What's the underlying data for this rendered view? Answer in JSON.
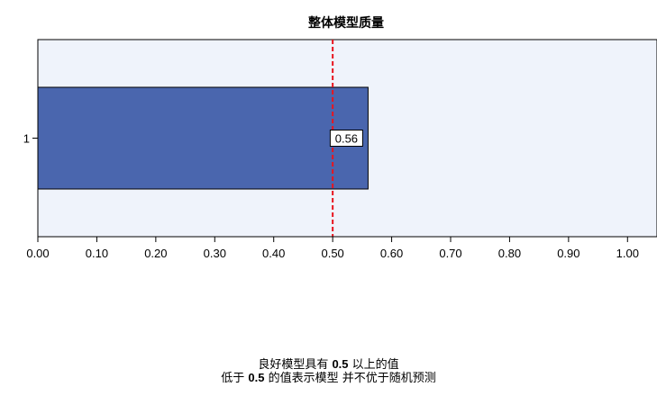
{
  "chart_data": {
    "type": "bar",
    "orientation": "horizontal",
    "title": "整体模型质量",
    "categories": [
      "1"
    ],
    "values": [
      0.56
    ],
    "data_labels": [
      "0.56"
    ],
    "xlim": [
      0,
      1.05
    ],
    "xticks": [
      0.0,
      0.1,
      0.2,
      0.3,
      0.4,
      0.5,
      0.6,
      0.7,
      0.8,
      0.9,
      1.0
    ],
    "xtick_labels": [
      "0.00",
      "0.10",
      "0.20",
      "0.30",
      "0.40",
      "0.50",
      "0.60",
      "0.70",
      "0.80",
      "0.90",
      "1.00"
    ],
    "reference_line": {
      "value": 0.5,
      "style": "dashed"
    },
    "xlabel": "",
    "ylabel": "",
    "grid": false,
    "colors": {
      "bar": "#4a66ae",
      "plot_background": "#eff3fb",
      "reference_line": "#e8141e",
      "axis": "#000000"
    }
  },
  "footnote": {
    "line1": {
      "pre": "良好模型具有 ",
      "value": "0.5",
      "post": " 以上的值"
    },
    "line2": {
      "pre": "低于 ",
      "value": "0.5",
      "post": " 的值表示模型 并不优于随机预测"
    }
  }
}
